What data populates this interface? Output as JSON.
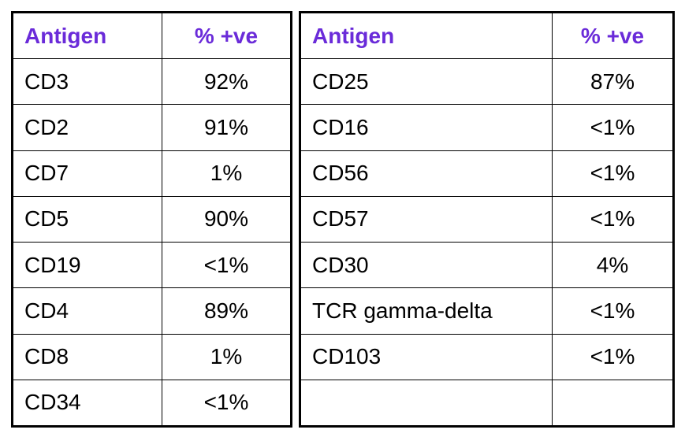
{
  "tables": [
    {
      "header": [
        "Antigen",
        "% +ve"
      ],
      "rows": [
        [
          "CD3",
          "92%"
        ],
        [
          "CD2",
          "91%"
        ],
        [
          "CD7",
          "1%"
        ],
        [
          "CD5",
          "90%"
        ],
        [
          "CD19",
          "<1%"
        ],
        [
          "CD4",
          "89%"
        ],
        [
          "CD8",
          "1%"
        ],
        [
          "CD34",
          "<1%"
        ]
      ]
    },
    {
      "header": [
        "Antigen",
        "% +ve"
      ],
      "rows": [
        [
          "CD25",
          "87%"
        ],
        [
          "CD16",
          "<1%"
        ],
        [
          "CD56",
          "<1%"
        ],
        [
          "CD57",
          "<1%"
        ],
        [
          "CD30",
          "4%"
        ],
        [
          "TCR gamma-delta",
          "<1%"
        ],
        [
          "CD103",
          "<1%"
        ]
      ]
    }
  ]
}
